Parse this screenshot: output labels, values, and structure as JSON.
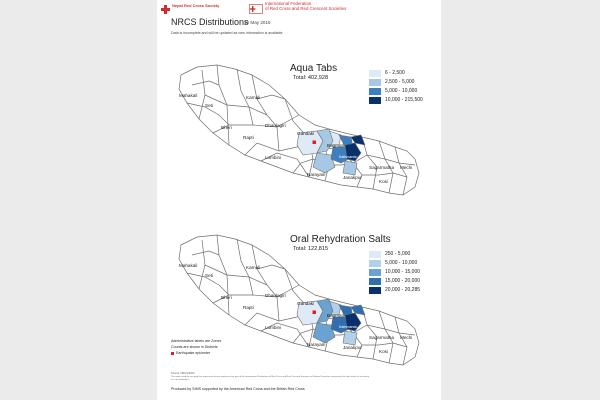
{
  "header": {
    "nrcs_label": "Nepal Red Cross Society",
    "ifrc_line1": "International Federation",
    "ifrc_line2": "of Red Cross and Red Crescent Societies",
    "title": "NRCS Distributions",
    "date": "10 May 2015",
    "note": "Data is incomplete and will be updated as new information is available"
  },
  "maps": [
    {
      "title": "Aqua Tabs",
      "total": "Total: 402,928",
      "legend": [
        {
          "label": "6 - 2,500",
          "color": "#deebf7"
        },
        {
          "label": "2,500 - 5,000",
          "color": "#a6c8e4"
        },
        {
          "label": "5,000 - 10,000",
          "color": "#3f7fbf"
        },
        {
          "label": "10,000 - 215,500",
          "color": "#08306b"
        }
      ]
    },
    {
      "title": "Oral Rehydration Salts",
      "total": "Total: 122,815",
      "legend": [
        {
          "label": "250 - 5,000",
          "color": "#deebf7"
        },
        {
          "label": "5,000 - 10,000",
          "color": "#b3d0ea"
        },
        {
          "label": "10,000 - 15,000",
          "color": "#6aa3d2"
        },
        {
          "label": "15,000 - 20,000",
          "color": "#2f6fb0"
        },
        {
          "label": "20,000 - 20,285",
          "color": "#08306b"
        }
      ]
    }
  ],
  "zones": [
    "Mahakali",
    "Seti",
    "Karnali",
    "Bheri",
    "Rapti",
    "Dhaulagiri",
    "Gandaki",
    "Lumbini",
    "Bagmati",
    "Kathmandu",
    "Narayani",
    "Janakpur",
    "Sagarmatha",
    "Kosi",
    "Mechi"
  ],
  "footer_notes": {
    "admin_note": "Administrative labels are Zones",
    "counts_note": "Counts are shown in Districts",
    "epicenter": "Earthquake epicenter",
    "source": "Source: NRCS/IFRC",
    "disclaimer": "The maps used do not imply the expression of any opinion on the part of the International Federation of Red Cross and Red Crescent Societies or National Societies concerning the legal status of a territory or of its authorities.",
    "produced": "Produced by SIMS supported by the American Red Cross and the British Red Cross"
  },
  "colors": {
    "red": "#d22d2d",
    "background": "#ebebeb",
    "district_stroke": "#6f6f6f",
    "epicenter": "#e02020"
  }
}
